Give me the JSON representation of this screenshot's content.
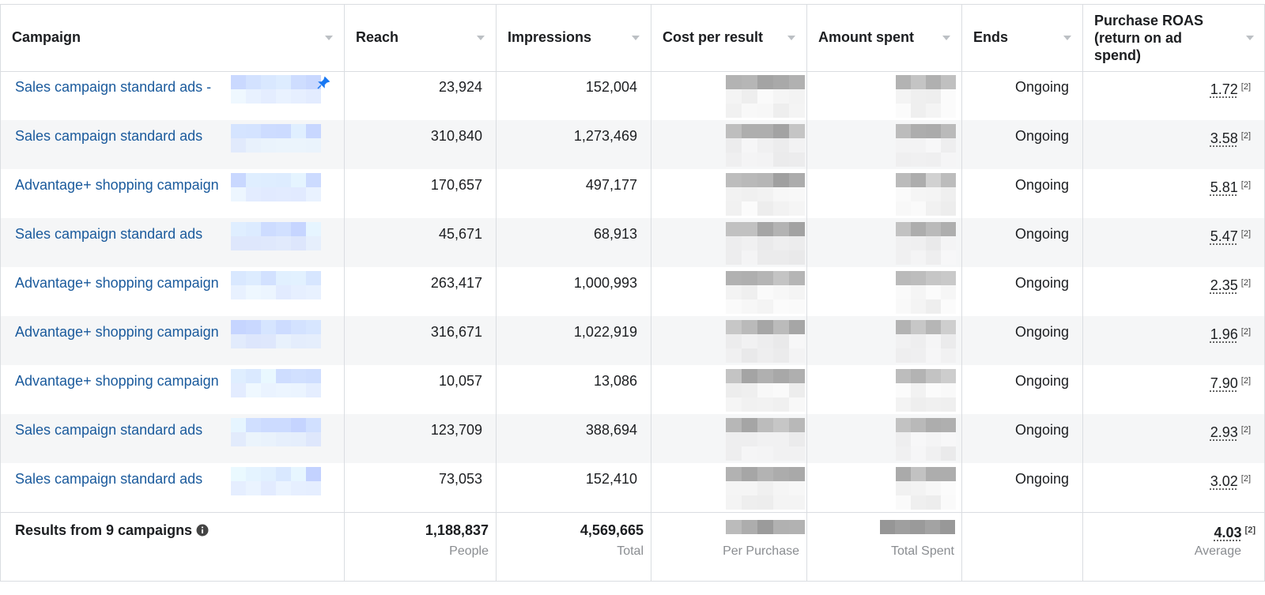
{
  "table": {
    "headers": [
      "Campaign",
      "Reach",
      "Impressions",
      "Cost per result",
      "Amount spent",
      "Ends",
      "Purchase ROAS (return on ad spend)"
    ],
    "rows": [
      {
        "campaign": "Sales campaign standard ads -",
        "reach": "23,924",
        "impressions": "152,004",
        "ends": "Ongoing",
        "roas": "1.72",
        "note": "[2]"
      },
      {
        "campaign": "Sales campaign standard ads",
        "reach": "310,840",
        "impressions": "1,273,469",
        "ends": "Ongoing",
        "roas": "3.58",
        "note": "[2]"
      },
      {
        "campaign": "Advantage+ shopping campaign",
        "reach": "170,657",
        "impressions": "497,177",
        "ends": "Ongoing",
        "roas": "5.81",
        "note": "[2]"
      },
      {
        "campaign": "Sales campaign standard ads",
        "reach": "45,671",
        "impressions": "68,913",
        "ends": "Ongoing",
        "roas": "5.47",
        "note": "[2]"
      },
      {
        "campaign": "Advantage+ shopping campaign",
        "reach": "263,417",
        "impressions": "1,000,993",
        "ends": "Ongoing",
        "roas": "2.35",
        "note": "[2]"
      },
      {
        "campaign": "Advantage+ shopping campaign",
        "reach": "316,671",
        "impressions": "1,022,919",
        "ends": "Ongoing",
        "roas": "1.96",
        "note": "[2]"
      },
      {
        "campaign": "Advantage+ shopping campaign",
        "reach": "10,057",
        "impressions": "13,086",
        "ends": "Ongoing",
        "roas": "7.90",
        "note": "[2]"
      },
      {
        "campaign": "Sales campaign standard ads",
        "reach": "123,709",
        "impressions": "388,694",
        "ends": "Ongoing",
        "roas": "2.93",
        "note": "[2]"
      },
      {
        "campaign": "Sales campaign standard ads",
        "reach": "73,053",
        "impressions": "152,410",
        "ends": "Ongoing",
        "roas": "3.02",
        "note": "[2]"
      }
    ],
    "summary": {
      "label": "Results from 9 campaigns",
      "reach": "1,188,837",
      "reach_sub": "People",
      "impressions": "4,569,665",
      "impressions_sub": "Total",
      "cost_sub": "Per Purchase",
      "amount_sub": "Total Spent",
      "roas": "4.03",
      "roas_note": "[2]",
      "roas_sub": "Average"
    }
  }
}
